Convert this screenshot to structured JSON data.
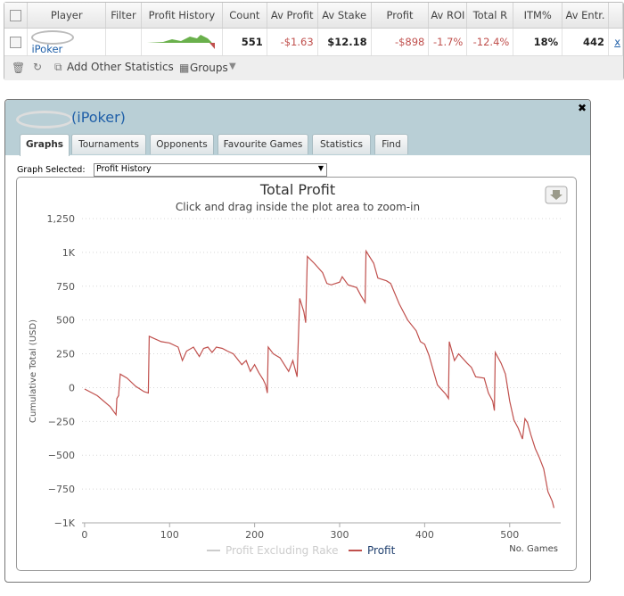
{
  "table": {
    "headers": [
      "Player",
      "Filter",
      "Profit History",
      "Count",
      "Av Profit",
      "Av Stake",
      "Profit",
      "Av ROI",
      "Total R",
      "ITM%",
      "Av Entr."
    ],
    "row": [
      "iPoker",
      "551",
      "-$1.63",
      "$12.18",
      "-$898",
      "-1.7%",
      "-12.4%",
      "18%",
      "442",
      "x"
    ]
  },
  "toolbar": {
    "add_stats": "Add Other Statistics",
    "groups": "Groups"
  },
  "window": {
    "title": "(iPoker)",
    "tabs": [
      "Graphs",
      "Tournaments",
      "Opponents",
      "Favourite Games",
      "Statistics",
      "Find"
    ],
    "graph_label": "Graph Selected:",
    "graph_selected": "Profit History"
  },
  "chart": {
    "type": "line",
    "title": "Total Profit",
    "subtitle": "Click and drag inside the plot area to zoom-in",
    "y_label": "Cumulative Total (USD)",
    "x_label": "No. Games",
    "xlim": [
      -3,
      560
    ],
    "xticks": [
      0,
      100,
      200,
      300,
      400,
      500
    ],
    "ylim": [
      -1000,
      1250
    ],
    "yticks": [
      {
        "value": -1000,
        "label": "−1K"
      },
      {
        "value": -750,
        "label": "−750"
      },
      {
        "value": -500,
        "label": "−500"
      },
      {
        "value": -250,
        "label": "−250"
      },
      0,
      250,
      500,
      750,
      {
        "value": 1000,
        "label": "1K"
      },
      {
        "value": 1250,
        "label": "1,250"
      }
    ],
    "grid": true,
    "series": [
      {
        "name": "Profit Excluding Rake",
        "color": "#cccccc",
        "visible": false
      },
      {
        "name": "Profit",
        "color": "#c0504d",
        "visible": true,
        "x": [
          0,
          15,
          30,
          37,
          38,
          40,
          42,
          50,
          60,
          70,
          75,
          76,
          90,
          100,
          110,
          115,
          120,
          128,
          135,
          140,
          145,
          150,
          155,
          162,
          168,
          175,
          185,
          190,
          195,
          200,
          205,
          210,
          213,
          215,
          216,
          222,
          230,
          240,
          245,
          250,
          253,
          258,
          260,
          262,
          270,
          280,
          285,
          290,
          300,
          303,
          310,
          320,
          325,
          328,
          330,
          331,
          340,
          345,
          355,
          360,
          370,
          380,
          390,
          395,
          400,
          405,
          410,
          415,
          425,
          428,
          429,
          435,
          440,
          450,
          455,
          460,
          470,
          475,
          480,
          482,
          483,
          490,
          495,
          500,
          505,
          510,
          515,
          518,
          521,
          525,
          530,
          535,
          540,
          545,
          550,
          552
        ],
        "values": [
          -10,
          -60,
          -140,
          -200,
          -80,
          -60,
          100,
          70,
          10,
          -30,
          -40,
          380,
          340,
          330,
          300,
          200,
          270,
          300,
          230,
          290,
          300,
          260,
          300,
          290,
          270,
          250,
          170,
          200,
          120,
          170,
          110,
          60,
          20,
          -40,
          300,
          250,
          220,
          120,
          200,
          80,
          660,
          560,
          480,
          970,
          920,
          850,
          770,
          760,
          780,
          820,
          760,
          740,
          680,
          650,
          630,
          1010,
          920,
          810,
          790,
          770,
          620,
          500,
          420,
          340,
          320,
          240,
          130,
          20,
          -50,
          -80,
          340,
          200,
          250,
          180,
          150,
          80,
          70,
          -40,
          -100,
          -170,
          260,
          180,
          100,
          -100,
          -240,
          -300,
          -380,
          -230,
          -260,
          -350,
          -450,
          -520,
          -600,
          -770,
          -840,
          -890
        ]
      }
    ]
  }
}
